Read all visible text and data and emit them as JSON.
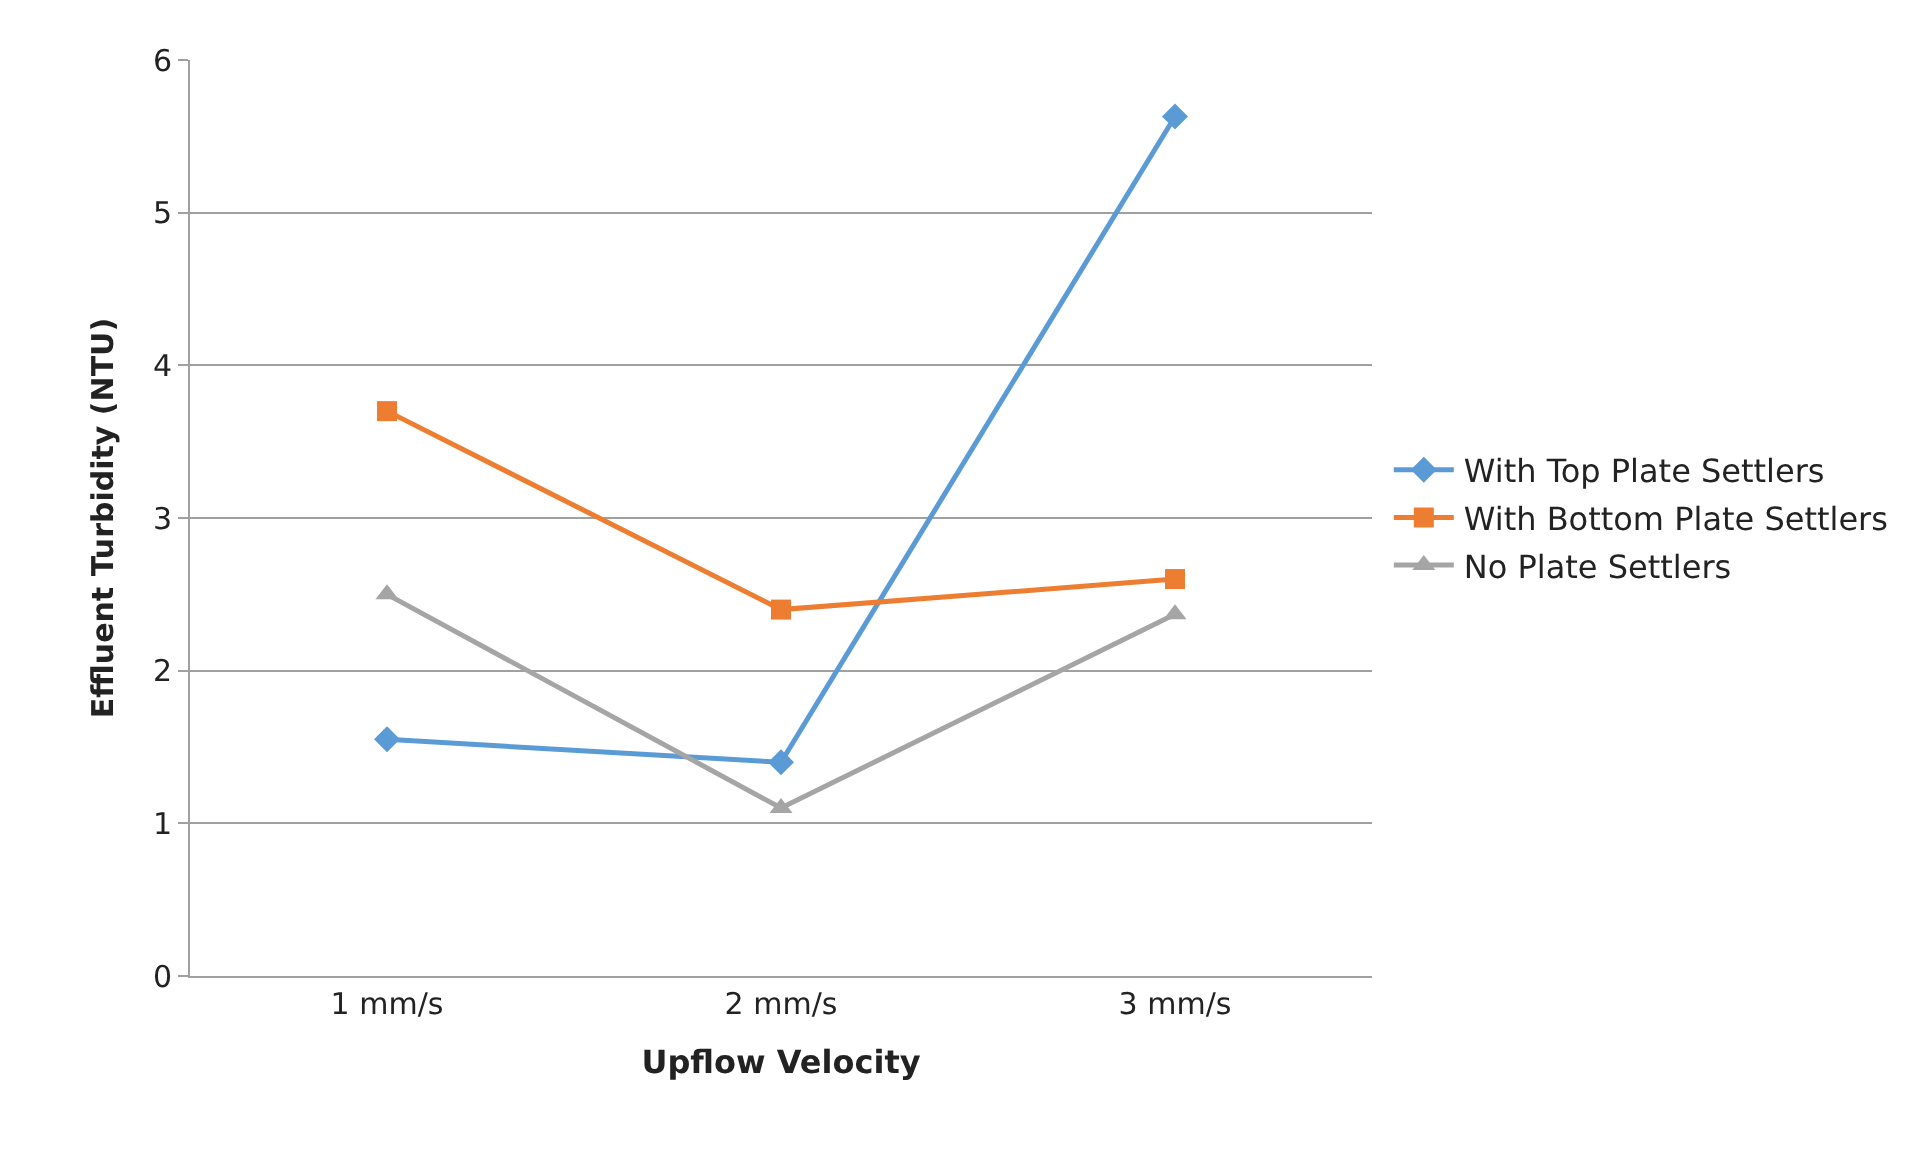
{
  "chart_data": {
    "type": "line",
    "xlabel": "Upflow Velocity",
    "ylabel": "Effluent Turbidity (NTU)",
    "categories": [
      "1 mm/s",
      "2 mm/s",
      "3 mm/s"
    ],
    "series": [
      {
        "name": "With Top Plate Settlers",
        "color": "#5b9bd5",
        "marker": "diamond",
        "values": [
          1.55,
          1.4,
          5.63
        ]
      },
      {
        "name": "With Bottom Plate Settlers",
        "color": "#ed7d31",
        "marker": "square",
        "values": [
          3.7,
          2.4,
          2.6
        ]
      },
      {
        "name": "No Plate Settlers",
        "color": "#a5a5a5",
        "marker": "triangle",
        "values": [
          2.5,
          1.1,
          2.37
        ]
      }
    ],
    "ylim": [
      0,
      6
    ],
    "yticks": [
      0,
      1,
      2,
      3,
      4,
      5,
      6
    ],
    "grid": "y",
    "legend": "right",
    "line_style": "solid"
  }
}
